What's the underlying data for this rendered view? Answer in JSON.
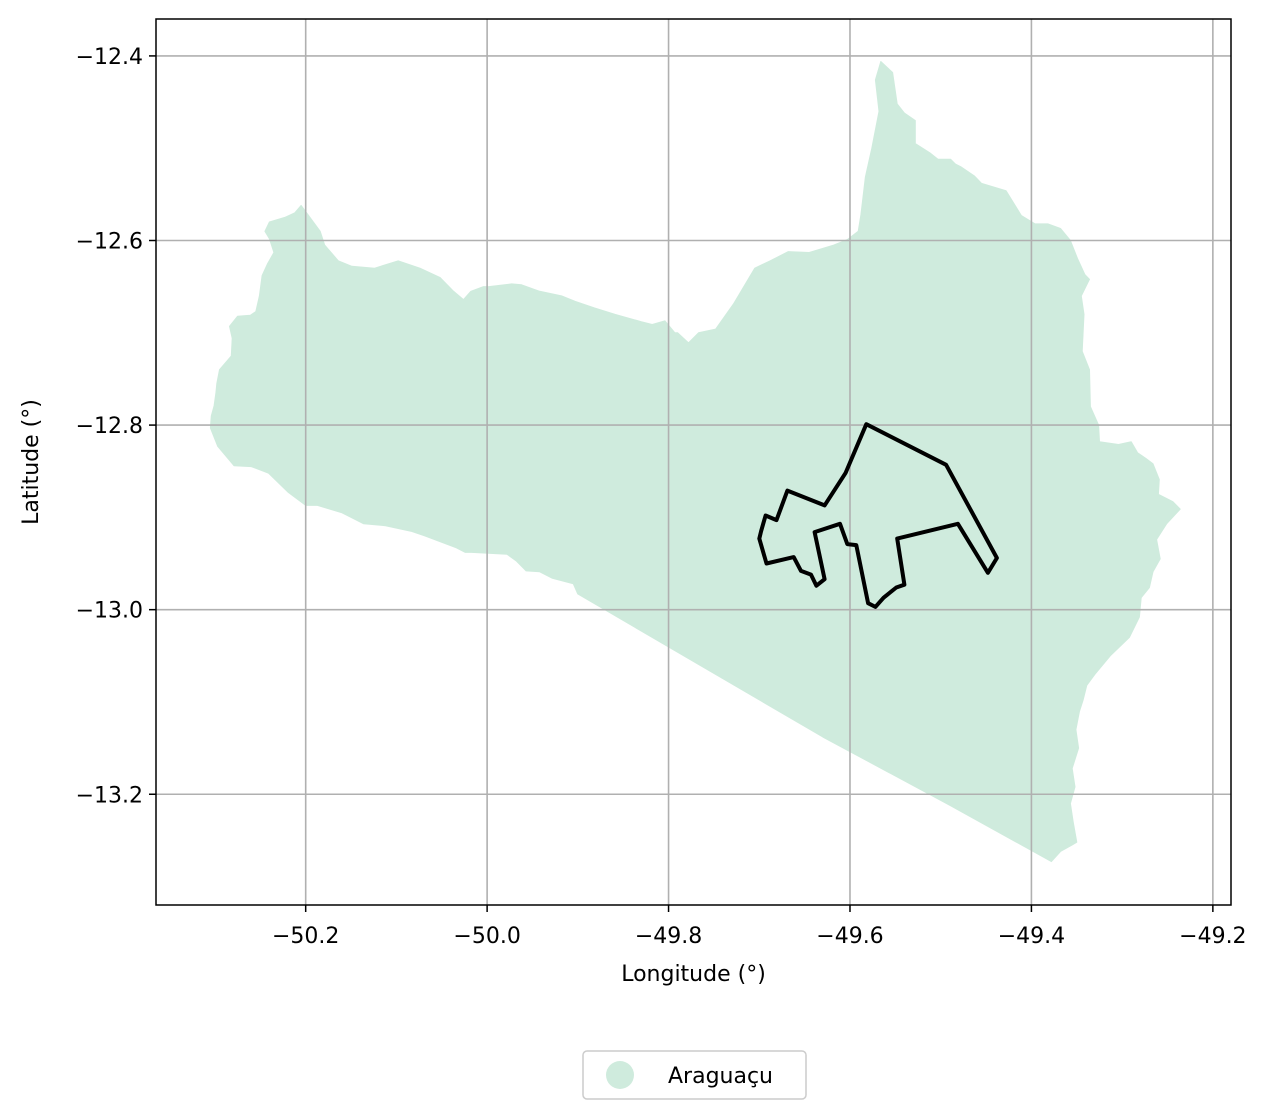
{
  "chart_data": {
    "type": "map",
    "xlabel": "Longitude (°)",
    "ylabel": "Latitude (°)",
    "xlim": [
      -50.365,
      -49.18
    ],
    "ylim": [
      -13.32,
      -12.36
    ],
    "x_ticks": [
      -50.2,
      -50.0,
      -49.8,
      -49.6,
      -49.4,
      -49.2
    ],
    "y_ticks": [
      -12.4,
      -12.6,
      -12.8,
      -13.0,
      -13.2
    ],
    "x_tick_labels": [
      "−50.2",
      "−50.0",
      "−49.8",
      "−49.6",
      "−49.4",
      "−49.2"
    ],
    "y_tick_labels": [
      "−12.4",
      "−12.6",
      "−12.8",
      "−13.0",
      "−13.2"
    ],
    "grid": true,
    "legend_position": "bottom-center",
    "legend": [
      {
        "label": "Araguaçu",
        "color": "#cfebdd",
        "marker": "circle"
      }
    ],
    "fill_color": "#cfebdd",
    "outline_color": "#000000",
    "regions": [
      {
        "name": "Araguaçu",
        "style": "filled",
        "coordinates": [
          [
            -49.566,
            -12.406
          ],
          [
            -49.553,
            -12.418
          ],
          [
            -49.548,
            -12.452
          ],
          [
            -49.54,
            -12.462
          ],
          [
            -49.528,
            -12.47
          ],
          [
            -49.528,
            -12.495
          ],
          [
            -49.512,
            -12.505
          ],
          [
            -49.503,
            -12.512
          ],
          [
            -49.489,
            -12.512
          ],
          [
            -49.484,
            -12.517
          ],
          [
            -49.478,
            -12.52
          ],
          [
            -49.463,
            -12.53
          ],
          [
            -49.455,
            -12.538
          ],
          [
            -49.428,
            -12.546
          ],
          [
            -49.411,
            -12.573
          ],
          [
            -49.396,
            -12.582
          ],
          [
            -49.382,
            -12.582
          ],
          [
            -49.368,
            -12.587
          ],
          [
            -49.357,
            -12.6
          ],
          [
            -49.349,
            -12.62
          ],
          [
            -49.341,
            -12.637
          ],
          [
            -49.336,
            -12.642
          ],
          [
            -49.345,
            -12.66
          ],
          [
            -49.342,
            -12.68
          ],
          [
            -49.344,
            -12.72
          ],
          [
            -49.336,
            -12.74
          ],
          [
            -49.335,
            -12.78
          ],
          [
            -49.326,
            -12.8
          ],
          [
            -49.325,
            -12.818
          ],
          [
            -49.304,
            -12.821
          ],
          [
            -49.29,
            -12.818
          ],
          [
            -49.283,
            -12.83
          ],
          [
            -49.274,
            -12.836
          ],
          [
            -49.266,
            -12.842
          ],
          [
            -49.259,
            -12.859
          ],
          [
            -49.26,
            -12.875
          ],
          [
            -49.244,
            -12.883
          ],
          [
            -49.236,
            -12.891
          ],
          [
            -49.251,
            -12.907
          ],
          [
            -49.262,
            -12.924
          ],
          [
            -49.258,
            -12.945
          ],
          [
            -49.266,
            -12.959
          ],
          [
            -49.27,
            -12.976
          ],
          [
            -49.279,
            -12.987
          ],
          [
            -49.281,
            -13.008
          ],
          [
            -49.292,
            -13.03
          ],
          [
            -49.313,
            -13.05
          ],
          [
            -49.33,
            -13.07
          ],
          [
            -49.339,
            -13.082
          ],
          [
            -49.343,
            -13.098
          ],
          [
            -49.347,
            -13.11
          ],
          [
            -49.351,
            -13.13
          ],
          [
            -49.348,
            -13.15
          ],
          [
            -49.355,
            -13.172
          ],
          [
            -49.352,
            -13.192
          ],
          [
            -49.357,
            -13.21
          ],
          [
            -49.354,
            -13.23
          ],
          [
            -49.35,
            -13.252
          ],
          [
            -49.355,
            -13.255
          ],
          [
            -49.368,
            -13.262
          ],
          [
            -49.378,
            -13.273
          ],
          [
            -49.49,
            -13.212
          ],
          [
            -49.63,
            -13.138
          ],
          [
            -49.9,
            -12.983
          ],
          [
            -49.905,
            -12.972
          ],
          [
            -49.928,
            -12.966
          ],
          [
            -49.942,
            -12.959
          ],
          [
            -49.957,
            -12.958
          ],
          [
            -49.968,
            -12.947
          ],
          [
            -49.978,
            -12.94
          ],
          [
            -50.017,
            -12.938
          ],
          [
            -50.024,
            -12.938
          ],
          [
            -50.034,
            -12.933
          ],
          [
            -50.069,
            -12.92
          ],
          [
            -50.084,
            -12.915
          ],
          [
            -50.112,
            -12.909
          ],
          [
            -50.136,
            -12.907
          ],
          [
            -50.16,
            -12.895
          ],
          [
            -50.187,
            -12.887
          ],
          [
            -50.2,
            -12.887
          ],
          [
            -50.219,
            -12.873
          ],
          [
            -50.241,
            -12.852
          ],
          [
            -50.26,
            -12.845
          ],
          [
            -50.279,
            -12.844
          ],
          [
            -50.297,
            -12.823
          ],
          [
            -50.305,
            -12.803
          ],
          [
            -50.304,
            -12.79
          ],
          [
            -50.301,
            -12.779
          ],
          [
            -50.299,
            -12.765
          ],
          [
            -50.298,
            -12.755
          ],
          [
            -50.295,
            -12.74
          ],
          [
            -50.282,
            -12.725
          ],
          [
            -50.281,
            -12.706
          ],
          [
            -50.284,
            -12.693
          ],
          [
            -50.275,
            -12.682
          ],
          [
            -50.261,
            -12.681
          ],
          [
            -50.255,
            -12.677
          ],
          [
            -50.251,
            -12.66
          ],
          [
            -50.248,
            -12.638
          ],
          [
            -50.242,
            -12.625
          ],
          [
            -50.235,
            -12.613
          ],
          [
            -50.24,
            -12.598
          ],
          [
            -50.245,
            -12.59
          ],
          [
            -50.24,
            -12.58
          ],
          [
            -50.223,
            -12.575
          ],
          [
            -50.212,
            -12.57
          ],
          [
            -50.205,
            -12.562
          ],
          [
            -50.199,
            -12.57
          ],
          [
            -50.184,
            -12.59
          ],
          [
            -50.179,
            -12.605
          ],
          [
            -50.164,
            -12.622
          ],
          [
            -50.149,
            -12.628
          ],
          [
            -50.124,
            -12.63
          ],
          [
            -50.098,
            -12.622
          ],
          [
            -50.074,
            -12.63
          ],
          [
            -50.052,
            -12.64
          ],
          [
            -50.037,
            -12.655
          ],
          [
            -50.026,
            -12.664
          ],
          [
            -50.018,
            -12.655
          ],
          [
            -50.004,
            -12.65
          ],
          [
            -49.998,
            -12.65
          ],
          [
            -49.973,
            -12.647
          ],
          [
            -49.962,
            -12.648
          ],
          [
            -49.942,
            -12.655
          ],
          [
            -49.918,
            -12.66
          ],
          [
            -49.903,
            -12.666
          ],
          [
            -49.882,
            -12.673
          ],
          [
            -49.859,
            -12.68
          ],
          [
            -49.83,
            -12.688
          ],
          [
            -49.818,
            -12.691
          ],
          [
            -49.804,
            -12.687
          ],
          [
            -49.793,
            -12.7
          ],
          [
            -49.79,
            -12.7
          ],
          [
            -49.778,
            -12.711
          ],
          [
            -49.767,
            -12.7
          ],
          [
            -49.748,
            -12.696
          ],
          [
            -49.728,
            -12.668
          ],
          [
            -49.705,
            -12.63
          ],
          [
            -49.688,
            -12.622
          ],
          [
            -49.668,
            -12.612
          ],
          [
            -49.645,
            -12.613
          ],
          [
            -49.618,
            -12.605
          ],
          [
            -49.603,
            -12.599
          ],
          [
            -49.591,
            -12.59
          ],
          [
            -49.588,
            -12.572
          ],
          [
            -49.583,
            -12.531
          ],
          [
            -49.576,
            -12.5
          ],
          [
            -49.568,
            -12.46
          ],
          [
            -49.572,
            -12.426
          ],
          [
            -49.566,
            -12.406
          ]
        ]
      },
      {
        "name": "outlined-area",
        "style": "outline",
        "coordinates": [
          [
            -49.582,
            -12.799
          ],
          [
            -49.494,
            -12.843
          ],
          [
            -49.438,
            -12.944
          ],
          [
            -49.448,
            -12.96
          ],
          [
            -49.481,
            -12.907
          ],
          [
            -49.548,
            -12.923
          ],
          [
            -49.54,
            -12.973
          ],
          [
            -49.549,
            -12.976
          ],
          [
            -49.563,
            -12.987
          ],
          [
            -49.572,
            -12.997
          ],
          [
            -49.58,
            -12.993
          ],
          [
            -49.593,
            -12.93
          ],
          [
            -49.603,
            -12.929
          ],
          [
            -49.611,
            -12.907
          ],
          [
            -49.639,
            -12.916
          ],
          [
            -49.628,
            -12.967
          ],
          [
            -49.637,
            -12.974
          ],
          [
            -49.643,
            -12.962
          ],
          [
            -49.654,
            -12.958
          ],
          [
            -49.662,
            -12.943
          ],
          [
            -49.692,
            -12.95
          ],
          [
            -49.7,
            -12.923
          ],
          [
            -49.698,
            -12.915
          ],
          [
            -49.693,
            -12.898
          ],
          [
            -49.681,
            -12.903
          ],
          [
            -49.669,
            -12.871
          ],
          [
            -49.628,
            -12.887
          ],
          [
            -49.605,
            -12.852
          ]
        ]
      }
    ]
  }
}
